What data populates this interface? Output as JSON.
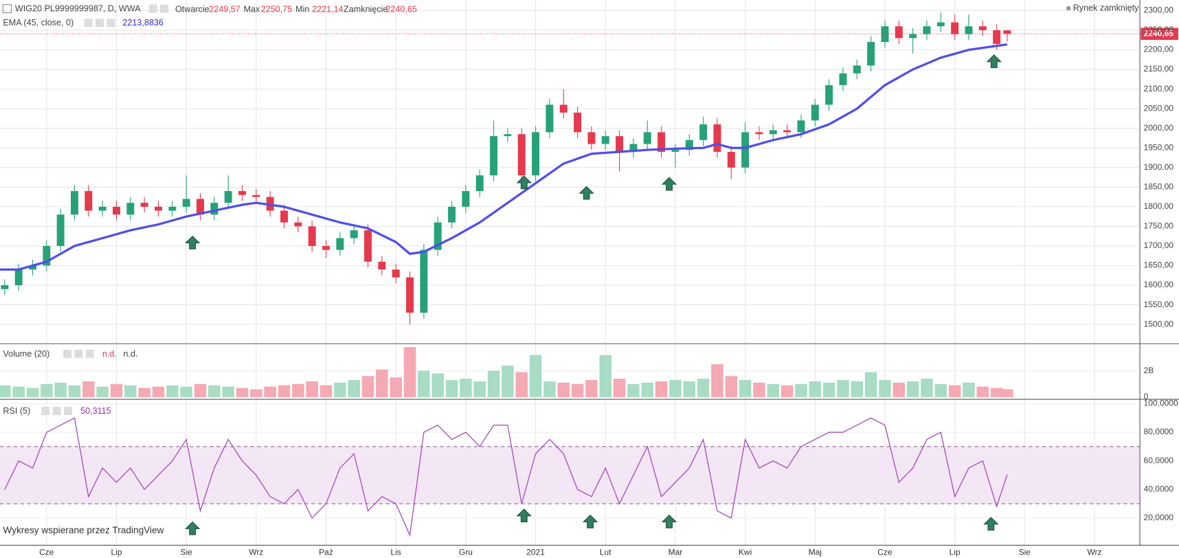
{
  "chart_data": [
    {
      "type": "candlestick",
      "title": "WIG20 PL9999999987, D, WWA",
      "ohlc_labels": [
        {
          "label": "Otwarcie",
          "value": "2249,57"
        },
        {
          "label": "Max",
          "value": "2250,75"
        },
        {
          "label": "Min",
          "value": "2221,14"
        },
        {
          "label": "Zamknięcie",
          "value": "2240,65"
        }
      ],
      "status": "Rynek zamknięty",
      "x": [
        -0.6,
        -0.4,
        -0.2,
        0,
        0.2,
        0.4,
        0.6,
        0.8,
        1,
        1.2,
        1.4,
        1.6,
        1.8,
        2,
        2.2,
        2.4,
        2.6,
        2.8,
        3,
        3.2,
        3.4,
        3.6,
        3.8,
        4,
        4.2,
        4.4,
        4.6,
        4.8,
        5,
        5.2,
        5.4,
        5.6,
        5.8,
        6,
        6.2,
        6.4,
        6.6,
        6.8,
        7,
        7.2,
        7.4,
        7.6,
        7.8,
        8,
        8.2,
        8.4,
        8.6,
        8.8,
        9,
        9.2,
        9.4,
        9.6,
        9.8,
        10,
        10.2,
        10.4,
        10.6,
        10.8,
        11,
        11.2,
        11.4,
        11.6,
        11.8,
        12,
        12.2,
        12.4,
        12.6,
        12.8,
        13,
        13.2,
        13.4,
        13.6,
        13.75
      ],
      "open": [
        1590,
        1600,
        1640,
        1650,
        1700,
        1780,
        1840,
        1790,
        1800,
        1780,
        1810,
        1800,
        1790,
        1800,
        1820,
        1780,
        1810,
        1840,
        1830,
        1825,
        1790,
        1760,
        1750,
        1700,
        1690,
        1720,
        1740,
        1660,
        1640,
        1620,
        1530,
        1690,
        1760,
        1800,
        1840,
        1880,
        1980,
        1985,
        1880,
        1990,
        2060,
        2040,
        1990,
        1960,
        1980,
        1940,
        1960,
        1990,
        1940,
        1945,
        1970,
        2010,
        1940,
        1900,
        1990,
        1985,
        1995,
        1990,
        2020,
        2060,
        2110,
        2140,
        2160,
        2220,
        2260,
        2230,
        2240,
        2260,
        2270,
        2240,
        2260,
        2250,
        2249.57
      ],
      "high": [
        1615,
        1655,
        1665,
        1715,
        1795,
        1855,
        1855,
        1815,
        1815,
        1825,
        1825,
        1815,
        1815,
        1880,
        1835,
        1825,
        1880,
        1855,
        1845,
        1840,
        1805,
        1775,
        1765,
        1715,
        1735,
        1755,
        1755,
        1675,
        1655,
        1635,
        1705,
        1775,
        1815,
        1855,
        1895,
        2020,
        2000,
        2000,
        2005,
        2075,
        2100,
        2055,
        2005,
        1995,
        1995,
        1975,
        2020,
        2005,
        1960,
        1985,
        2030,
        2025,
        1955,
        2015,
        2005,
        2010,
        2010,
        2035,
        2075,
        2125,
        2155,
        2175,
        2235,
        2275,
        2275,
        2255,
        2275,
        2295,
        2290,
        2290,
        2275,
        2265,
        2250.75
      ],
      "low": [
        1575,
        1585,
        1625,
        1635,
        1685,
        1765,
        1775,
        1775,
        1765,
        1765,
        1785,
        1775,
        1775,
        1785,
        1765,
        1765,
        1795,
        1815,
        1810,
        1775,
        1745,
        1735,
        1685,
        1670,
        1675,
        1705,
        1645,
        1625,
        1605,
        1500,
        1515,
        1675,
        1745,
        1785,
        1825,
        1865,
        1965,
        1865,
        1865,
        1975,
        2025,
        1975,
        1945,
        1945,
        1890,
        1925,
        1945,
        1925,
        1900,
        1930,
        1955,
        1925,
        1870,
        1885,
        1970,
        1970,
        1975,
        1975,
        2005,
        2045,
        2095,
        2125,
        2145,
        2205,
        2215,
        2190,
        2225,
        2245,
        2225,
        2225,
        2235,
        2200,
        2221.14
      ],
      "close": [
        1600,
        1640,
        1650,
        1700,
        1780,
        1840,
        1790,
        1800,
        1780,
        1810,
        1800,
        1790,
        1800,
        1820,
        1780,
        1810,
        1840,
        1830,
        1825,
        1790,
        1760,
        1750,
        1700,
        1690,
        1720,
        1740,
        1660,
        1640,
        1620,
        1530,
        1690,
        1760,
        1800,
        1840,
        1880,
        1980,
        1985,
        1880,
        1990,
        2060,
        2040,
        1990,
        1960,
        1980,
        1940,
        1960,
        1990,
        1940,
        1945,
        1970,
        2010,
        1940,
        1900,
        1990,
        1985,
        1995,
        1990,
        2020,
        2060,
        2110,
        2140,
        2160,
        2220,
        2260,
        2230,
        2240,
        2260,
        2270,
        2240,
        2260,
        2250,
        2215,
        2240.65
      ],
      "up_color": "#26a17a",
      "down_color": "#e5394d",
      "overlay": {
        "name": "EMA (45, close, 0)",
        "value_label": "2213,8836",
        "color": "#4f4fe8",
        "x": [
          -0.667,
          -0.4,
          0,
          0.4,
          0.8,
          1.2,
          1.6,
          2,
          2.4,
          2.8,
          3,
          3.4,
          3.8,
          4.2,
          4.6,
          5,
          5.2,
          5.4,
          5.8,
          6.2,
          6.6,
          7,
          7.4,
          7.8,
          8.2,
          8.6,
          9,
          9.4,
          9.6,
          9.8,
          10,
          10.4,
          10.8,
          11.2,
          11.6,
          12,
          12.4,
          12.8,
          13.2,
          13.6,
          13.75
        ],
        "values": [
          1640,
          1640,
          1660,
          1700,
          1720,
          1740,
          1755,
          1775,
          1790,
          1805,
          1810,
          1800,
          1780,
          1760,
          1745,
          1710,
          1680,
          1685,
          1720,
          1760,
          1810,
          1860,
          1910,
          1935,
          1940,
          1945,
          1948,
          1950,
          1960,
          1950,
          1950,
          1970,
          1985,
          2010,
          2050,
          2110,
          2150,
          2180,
          2200,
          2210,
          2213.8836
        ]
      },
      "last_price": {
        "value": 2240.65,
        "label": "2240,65"
      },
      "xlim": [
        -0.667,
        15.65
      ],
      "xticks": [
        {
          "value": 0,
          "label": "Cze"
        },
        {
          "value": 1,
          "label": "Lip"
        },
        {
          "value": 2,
          "label": "Sie"
        },
        {
          "value": 3,
          "label": "Wrz"
        },
        {
          "value": 4,
          "label": "Paź"
        },
        {
          "value": 5,
          "label": "Lis"
        },
        {
          "value": 6,
          "label": "Gru"
        },
        {
          "value": 7,
          "label": "2021"
        },
        {
          "value": 8,
          "label": "Lut"
        },
        {
          "value": 9,
          "label": "Mar"
        },
        {
          "value": 10,
          "label": "Kwi"
        },
        {
          "value": 11,
          "label": "Maj"
        },
        {
          "value": 12,
          "label": "Cze"
        },
        {
          "value": 13,
          "label": "Lip"
        },
        {
          "value": 14,
          "label": "Sie"
        },
        {
          "value": 15,
          "label": "Wrz"
        }
      ],
      "ylim": [
        1451,
        2327
      ],
      "yticks": [
        {
          "value": 1500,
          "label": "1500,00"
        },
        {
          "value": 1550,
          "label": "1550,00"
        },
        {
          "value": 1600,
          "label": "1600,00"
        },
        {
          "value": 1650,
          "label": "1650,00"
        },
        {
          "value": 1700,
          "label": "1700,00"
        },
        {
          "value": 1750,
          "label": "1750,00"
        },
        {
          "value": 1800,
          "label": "1800,00"
        },
        {
          "value": 1850,
          "label": "1850,00"
        },
        {
          "value": 1900,
          "label": "1900,00"
        },
        {
          "value": 1950,
          "label": "1950,00"
        },
        {
          "value": 2000,
          "label": "2000,00"
        },
        {
          "value": 2050,
          "label": "2050,00"
        },
        {
          "value": 2100,
          "label": "2100,00"
        },
        {
          "value": 2150,
          "label": "2150,00"
        },
        {
          "value": 2200,
          "label": "2200,00"
        },
        {
          "value": 2250,
          "label": "2250,00"
        },
        {
          "value": 2300,
          "label": "2300,00"
        }
      ],
      "grid": true
    },
    {
      "type": "bar",
      "title": "Volume (20)",
      "readouts": [
        "n.d.",
        "n.d."
      ],
      "x": [
        -0.6,
        -0.4,
        -0.2,
        0,
        0.2,
        0.4,
        0.6,
        0.8,
        1,
        1.2,
        1.4,
        1.6,
        1.8,
        2,
        2.2,
        2.4,
        2.6,
        2.8,
        3,
        3.2,
        3.4,
        3.6,
        3.8,
        4,
        4.2,
        4.4,
        4.6,
        4.8,
        5,
        5.2,
        5.4,
        5.6,
        5.8,
        6,
        6.2,
        6.4,
        6.6,
        6.8,
        7,
        7.2,
        7.4,
        7.6,
        7.8,
        8,
        8.2,
        8.4,
        8.6,
        8.8,
        9,
        9.2,
        9.4,
        9.6,
        9.8,
        10,
        10.2,
        10.4,
        10.6,
        10.8,
        11,
        11.2,
        11.4,
        11.6,
        11.8,
        12,
        12.2,
        12.4,
        12.6,
        12.8,
        13,
        13.2,
        13.4,
        13.6,
        13.75
      ],
      "values": [
        0.9,
        0.8,
        0.7,
        1.0,
        1.1,
        0.9,
        1.2,
        0.8,
        1.0,
        0.9,
        0.7,
        0.8,
        0.9,
        0.8,
        1.0,
        0.9,
        0.8,
        0.7,
        0.6,
        0.8,
        0.9,
        1.0,
        1.2,
        0.9,
        1.1,
        1.3,
        1.6,
        2.1,
        1.5,
        3.8,
        2.0,
        1.8,
        1.3,
        1.4,
        1.2,
        2.0,
        2.4,
        1.9,
        3.2,
        1.2,
        1.1,
        1.0,
        1.3,
        3.2,
        1.4,
        1.0,
        1.1,
        1.2,
        1.3,
        1.2,
        1.4,
        2.5,
        1.6,
        1.3,
        1.1,
        1.0,
        0.9,
        1.0,
        1.2,
        1.1,
        1.3,
        1.2,
        1.9,
        1.3,
        1.1,
        1.2,
        1.4,
        1.0,
        0.9,
        1.1,
        0.8,
        0.7,
        0.6
      ],
      "up_color": "#a8dcc4",
      "down_color": "#f5a9b2",
      "ylim": [
        -0.11,
        3.89
      ],
      "yticks": [
        0,
        {
          "value": 2,
          "label": "2B"
        }
      ]
    },
    {
      "type": "line",
      "title": "RSI (5)",
      "value_label": "50,3115",
      "color": "#a44bbb",
      "band_color": "#f1e1f3",
      "x": [
        -0.6,
        -0.4,
        -0.2,
        0,
        0.2,
        0.4,
        0.6,
        0.8,
        1,
        1.2,
        1.4,
        1.6,
        1.8,
        2,
        2.2,
        2.4,
        2.6,
        2.8,
        3,
        3.2,
        3.4,
        3.6,
        3.8,
        4,
        4.2,
        4.4,
        4.6,
        4.8,
        5,
        5.2,
        5.4,
        5.6,
        5.8,
        6,
        6.2,
        6.4,
        6.6,
        6.8,
        7,
        7.2,
        7.4,
        7.6,
        7.8,
        8,
        8.2,
        8.4,
        8.6,
        8.8,
        9,
        9.2,
        9.4,
        9.6,
        9.8,
        10,
        10.2,
        10.4,
        10.6,
        10.8,
        11,
        11.2,
        11.4,
        11.6,
        11.8,
        12,
        12.2,
        12.4,
        12.6,
        12.8,
        13,
        13.2,
        13.4,
        13.6,
        13.75
      ],
      "values": [
        40,
        60,
        55,
        80,
        85,
        90,
        35,
        55,
        45,
        55,
        40,
        50,
        60,
        75,
        25,
        55,
        75,
        60,
        50,
        35,
        30,
        40,
        20,
        30,
        55,
        65,
        25,
        35,
        30,
        8,
        80,
        85,
        75,
        80,
        70,
        85,
        85,
        30,
        65,
        75,
        65,
        40,
        35,
        55,
        30,
        50,
        70,
        35,
        45,
        55,
        75,
        25,
        20,
        75,
        55,
        60,
        55,
        70,
        75,
        80,
        80,
        85,
        90,
        85,
        45,
        55,
        75,
        80,
        35,
        55,
        60,
        28,
        50.3115
      ],
      "upper_band": 70,
      "lower_band": 30,
      "ylim": [
        1,
        102
      ],
      "yticks": [
        {
          "value": 20,
          "label": "20,0000"
        },
        {
          "value": 40,
          "label": "40,0000"
        },
        {
          "value": 60,
          "label": "60,0000"
        },
        {
          "value": 80,
          "label": "80,0000"
        },
        {
          "value": 100,
          "label": "100,0000"
        }
      ]
    }
  ],
  "footer": "Wykresy wspierane przez TradingView"
}
